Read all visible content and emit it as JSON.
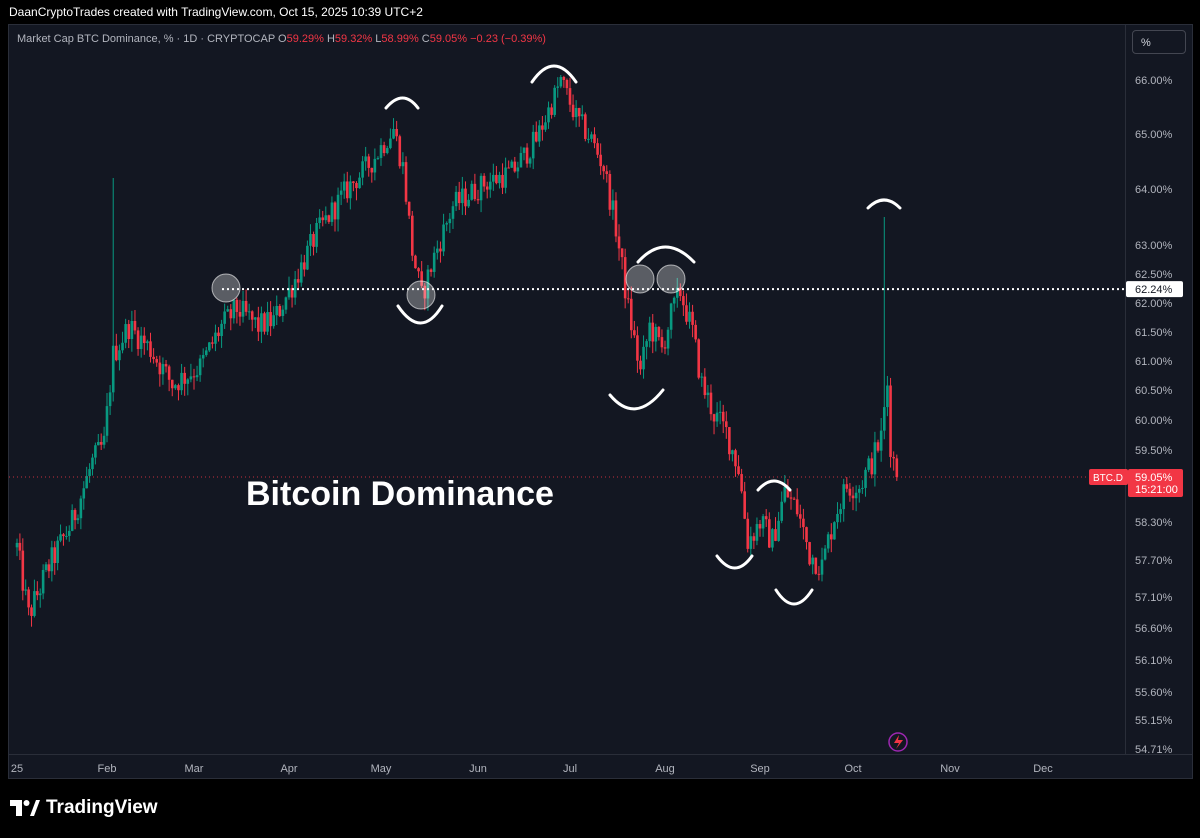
{
  "header": {
    "attribution": "DaanCryptoTrades created with TradingView.com, Oct 15, 2025 10:39 UTC+2"
  },
  "legend": {
    "symbol": "Market Cap BTC Dominance, % · 1D · CRYPTOCAP",
    "o_label": "O",
    "o_value": "59.29%",
    "h_label": "H",
    "h_value": "59.32%",
    "l_label": "L",
    "l_value": "58.99%",
    "c_label": "C",
    "c_value": "59.05%",
    "change": "−0.23 (−0.39%)"
  },
  "scale_button": "%",
  "annotation_text": "Bitcoin Dominance",
  "price_axis": {
    "ticks": [
      "66.00%",
      "65.00%",
      "64.00%",
      "63.00%",
      "62.50%",
      "62.00%",
      "61.50%",
      "61.00%",
      "60.50%",
      "60.00%",
      "59.50%",
      "58.30%",
      "57.70%",
      "57.10%",
      "56.60%",
      "56.10%",
      "55.60%",
      "55.15%",
      "54.71%"
    ],
    "level_label": "62.24%",
    "symbol_tag": "BTC.D",
    "last_price": "59.05%",
    "countdown": "15:21:00"
  },
  "time_axis": {
    "labels": [
      "25",
      "Feb",
      "Mar",
      "Apr",
      "May",
      "Jun",
      "Jul",
      "Aug",
      "Sep",
      "Oct",
      "Nov",
      "Dec"
    ]
  },
  "footer": {
    "brand": "TradingView"
  },
  "colors": {
    "up": "#089981",
    "down": "#f23645",
    "background": "#131722",
    "level_line": "#ffffff",
    "last_price_line": "#f23645"
  },
  "chart_data": {
    "type": "candlestick",
    "title": "Market Cap BTC Dominance, %",
    "interval": "1D",
    "ylim": [
      54.71,
      66.1
    ],
    "x_range": [
      "2025-01-01",
      "2025-12-31"
    ],
    "resistance_level": 62.24,
    "last_close": 59.05,
    "grid": false,
    "keypoints": [
      {
        "date": "2025-01-01",
        "value": 57.9
      },
      {
        "date": "2025-01-05",
        "value": 56.8
      },
      {
        "date": "2025-01-12",
        "value": 57.6
      },
      {
        "date": "2025-01-20",
        "value": 58.3
      },
      {
        "date": "2025-01-27",
        "value": 59.3
      },
      {
        "date": "2025-01-31",
        "value": 59.6
      },
      {
        "date": "2025-02-03",
        "value": 61.1
      },
      {
        "date": "2025-02-08",
        "value": 61.6
      },
      {
        "date": "2025-02-15",
        "value": 61.2
      },
      {
        "date": "2025-02-22",
        "value": 60.6
      },
      {
        "date": "2025-03-03",
        "value": 60.9
      },
      {
        "date": "2025-03-10",
        "value": 61.6
      },
      {
        "date": "2025-03-15",
        "value": 61.9
      },
      {
        "date": "2025-03-22",
        "value": 61.6
      },
      {
        "date": "2025-03-27",
        "value": 61.7
      },
      {
        "date": "2025-04-02",
        "value": 62.3
      },
      {
        "date": "2025-04-10",
        "value": 63.2
      },
      {
        "date": "2025-04-20",
        "value": 64.0
      },
      {
        "date": "2025-04-28",
        "value": 64.5
      },
      {
        "date": "2025-05-05",
        "value": 65.1
      },
      {
        "date": "2025-05-08",
        "value": 64.4
      },
      {
        "date": "2025-05-11",
        "value": 62.9
      },
      {
        "date": "2025-05-14",
        "value": 62.1
      },
      {
        "date": "2025-05-18",
        "value": 62.8
      },
      {
        "date": "2025-05-24",
        "value": 63.7
      },
      {
        "date": "2025-06-03",
        "value": 64.1
      },
      {
        "date": "2025-06-12",
        "value": 64.3
      },
      {
        "date": "2025-06-20",
        "value": 64.9
      },
      {
        "date": "2025-06-26",
        "value": 65.7
      },
      {
        "date": "2025-06-28",
        "value": 66.0
      },
      {
        "date": "2025-07-03",
        "value": 65.3
      },
      {
        "date": "2025-07-08",
        "value": 64.9
      },
      {
        "date": "2025-07-12",
        "value": 64.4
      },
      {
        "date": "2025-07-16",
        "value": 63.3
      },
      {
        "date": "2025-07-20",
        "value": 61.9
      },
      {
        "date": "2025-07-24",
        "value": 60.8
      },
      {
        "date": "2025-07-27",
        "value": 61.6
      },
      {
        "date": "2025-07-31",
        "value": 61.2
      },
      {
        "date": "2025-08-03",
        "value": 61.8
      },
      {
        "date": "2025-08-06",
        "value": 62.2
      },
      {
        "date": "2025-08-10",
        "value": 61.5
      },
      {
        "date": "2025-08-13",
        "value": 60.6
      },
      {
        "date": "2025-08-17",
        "value": 60.1
      },
      {
        "date": "2025-08-21",
        "value": 59.8
      },
      {
        "date": "2025-08-25",
        "value": 59.2
      },
      {
        "date": "2025-08-28",
        "value": 58.0
      },
      {
        "date": "2025-09-01",
        "value": 58.3
      },
      {
        "date": "2025-09-05",
        "value": 58.0
      },
      {
        "date": "2025-09-09",
        "value": 58.8
      },
      {
        "date": "2025-09-13",
        "value": 58.5
      },
      {
        "date": "2025-09-17",
        "value": 57.8
      },
      {
        "date": "2025-09-21",
        "value": 57.6
      },
      {
        "date": "2025-09-25",
        "value": 58.4
      },
      {
        "date": "2025-09-29",
        "value": 58.9
      },
      {
        "date": "2025-10-03",
        "value": 58.9
      },
      {
        "date": "2025-10-07",
        "value": 59.3
      },
      {
        "date": "2025-10-10",
        "value": 59.7
      },
      {
        "date": "2025-10-12",
        "value": 60.6
      },
      {
        "date": "2025-10-13",
        "value": 59.6
      },
      {
        "date": "2025-10-15",
        "value": 59.05
      }
    ],
    "spikes": [
      {
        "date": "2025-02-03",
        "high": 64.2
      },
      {
        "date": "2025-10-11",
        "high": 63.5
      }
    ]
  }
}
